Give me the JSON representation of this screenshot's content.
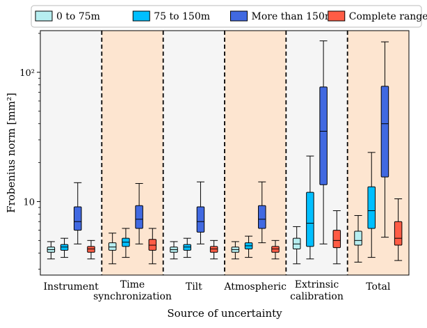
{
  "chart_data": {
    "type": "boxplot",
    "xlabel": "Source of uncertainty",
    "ylabel": "Frobenius norm [mm²]",
    "yscale": "log",
    "ylim": [
      2.7,
      210
    ],
    "yticks": [
      {
        "value": 10,
        "label": "10"
      },
      {
        "value": 100,
        "label": "10²"
      }
    ],
    "legend": {
      "placement": "top",
      "ncol": 4
    },
    "grid": false,
    "categories": [
      {
        "lines": [
          "Instrument"
        ]
      },
      {
        "lines": [
          "Time",
          "synchronization"
        ]
      },
      {
        "lines": [
          "Tilt"
        ]
      },
      {
        "lines": [
          "Atmospheric"
        ]
      },
      {
        "lines": [
          "Extrinsic",
          "calibration"
        ]
      },
      {
        "lines": [
          "Total"
        ]
      }
    ],
    "band_colors": [
      "#f5f5f5",
      "#fde5d0"
    ],
    "series": [
      {
        "name": "0 to 75m",
        "color": "#b7eef0",
        "boxes": [
          {
            "whislo": 3.6,
            "q1": 4.05,
            "med": 4.25,
            "q3": 4.45,
            "whishi": 4.9
          },
          {
            "whislo": 3.3,
            "q1": 4.2,
            "med": 4.45,
            "q3": 4.8,
            "whishi": 5.7
          },
          {
            "whislo": 3.6,
            "q1": 4.05,
            "med": 4.25,
            "q3": 4.45,
            "whishi": 4.9
          },
          {
            "whislo": 3.6,
            "q1": 4.05,
            "med": 4.25,
            "q3": 4.45,
            "whishi": 4.9
          },
          {
            "whislo": 3.3,
            "q1": 4.3,
            "med": 4.7,
            "q3": 5.2,
            "whishi": 6.4
          },
          {
            "whislo": 3.4,
            "q1": 4.6,
            "med": 5.0,
            "q3": 5.9,
            "whishi": 7.8
          }
        ]
      },
      {
        "name": "75 to 150m",
        "color": "#00bfff",
        "boxes": [
          {
            "whislo": 3.7,
            "q1": 4.2,
            "med": 4.45,
            "q3": 4.65,
            "whishi": 5.2
          },
          {
            "whislo": 3.7,
            "q1": 4.5,
            "med": 4.85,
            "q3": 5.2,
            "whishi": 6.2
          },
          {
            "whislo": 3.7,
            "q1": 4.2,
            "med": 4.45,
            "q3": 4.65,
            "whishi": 5.2
          },
          {
            "whislo": 3.7,
            "q1": 4.3,
            "med": 4.55,
            "q3": 4.8,
            "whishi": 5.4
          },
          {
            "whislo": 3.6,
            "q1": 4.5,
            "med": 6.8,
            "q3": 11.8,
            "whishi": 22.5
          },
          {
            "whislo": 3.7,
            "q1": 6.2,
            "med": 8.5,
            "q3": 13.0,
            "whishi": 24.0
          }
        ]
      },
      {
        "name": "More than 150m",
        "color": "#4169e1",
        "boxes": [
          {
            "whislo": 4.7,
            "q1": 6.0,
            "med": 7.0,
            "q3": 9.1,
            "whishi": 14.0
          },
          {
            "whislo": 4.7,
            "q1": 6.2,
            "med": 7.3,
            "q3": 9.3,
            "whishi": 13.8
          },
          {
            "whislo": 4.7,
            "q1": 5.8,
            "med": 7.0,
            "q3": 9.1,
            "whishi": 14.2
          },
          {
            "whislo": 4.8,
            "q1": 6.2,
            "med": 7.3,
            "q3": 9.3,
            "whishi": 14.2
          },
          {
            "whislo": 4.7,
            "q1": 13.5,
            "med": 35.0,
            "q3": 77.0,
            "whishi": 175.0
          },
          {
            "whislo": 5.3,
            "q1": 15.5,
            "med": 40.0,
            "q3": 78.0,
            "whishi": 172.0
          }
        ]
      },
      {
        "name": "Complete range",
        "color": "#ff5c45",
        "boxes": [
          {
            "whislo": 3.6,
            "q1": 4.05,
            "med": 4.3,
            "q3": 4.5,
            "whishi": 5.0
          },
          {
            "whislo": 3.3,
            "q1": 4.2,
            "med": 4.6,
            "q3": 5.1,
            "whishi": 6.2
          },
          {
            "whislo": 3.6,
            "q1": 4.05,
            "med": 4.3,
            "q3": 4.5,
            "whishi": 5.0
          },
          {
            "whislo": 3.6,
            "q1": 4.05,
            "med": 4.3,
            "q3": 4.5,
            "whishi": 5.0
          },
          {
            "whislo": 3.3,
            "q1": 4.4,
            "med": 5.0,
            "q3": 6.0,
            "whishi": 8.5
          },
          {
            "whislo": 3.5,
            "q1": 4.6,
            "med": 5.2,
            "q3": 7.0,
            "whishi": 10.5
          }
        ]
      }
    ]
  }
}
